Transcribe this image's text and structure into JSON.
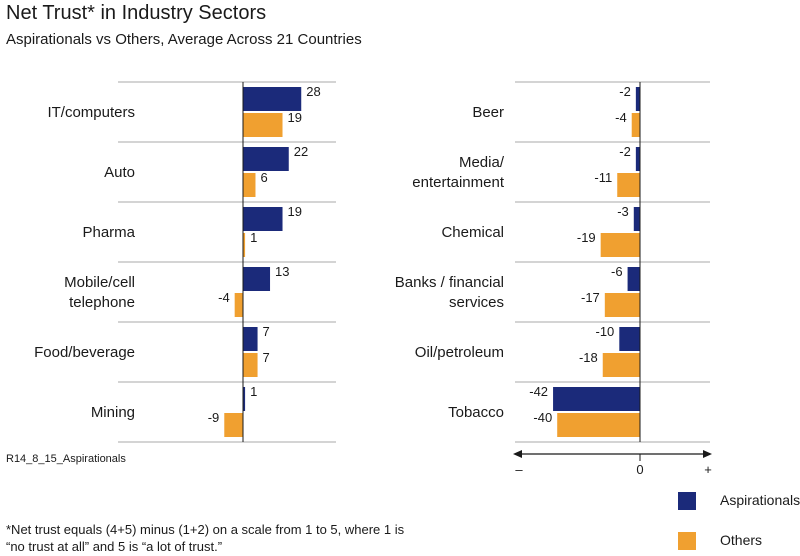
{
  "title": "Net Trust* in Industry Sectors",
  "subtitle": "Aspirationals vs Others, Average Across 21 Countries",
  "chart_code": "R14_8_15_Aspirationals",
  "footnote": {
    "line1": "*Net trust equals (4+5) minus (1+2) on a scale from 1 to 5, where 1 is",
    "line2": "“no trust at all” and 5 is “a lot of trust.”"
  },
  "colors": {
    "aspirationals": "#1b2a7a",
    "others": "#f0a030",
    "axis": "#1a1a1a",
    "divider": "#aaaaaa"
  },
  "axis": {
    "minus": "–",
    "zero": "0",
    "plus": "+"
  },
  "legend": {
    "aspirationals": "Aspirationals",
    "others": "Others"
  },
  "chart_data": [
    {
      "type": "bar",
      "orientation": "horizontal",
      "categories": [
        [
          "IT/computers"
        ],
        [
          "Auto"
        ],
        [
          "Pharma"
        ],
        [
          "Mobile/cell",
          "telephone"
        ],
        [
          "Food/beverage"
        ],
        [
          "Mining"
        ]
      ],
      "series": [
        {
          "name": "Aspirationals",
          "values": [
            28,
            22,
            19,
            13,
            7,
            1
          ]
        },
        {
          "name": "Others",
          "values": [
            19,
            6,
            1,
            -4,
            7,
            -9
          ]
        }
      ]
    },
    {
      "type": "bar",
      "orientation": "horizontal",
      "categories": [
        [
          "Beer"
        ],
        [
          "Media/",
          "entertainment"
        ],
        [
          "Chemical"
        ],
        [
          "Banks / financial",
          "services"
        ],
        [
          "Oil/petroleum"
        ],
        [
          "Tobacco"
        ]
      ],
      "series": [
        {
          "name": "Aspirationals",
          "values": [
            -2,
            -2,
            -3,
            -6,
            -10,
            -42
          ]
        },
        {
          "name": "Others",
          "values": [
            -4,
            -11,
            -19,
            -17,
            -18,
            -40
          ]
        }
      ],
      "xaxis": {
        "labels": [
          "–",
          "0",
          "+"
        ]
      }
    }
  ]
}
